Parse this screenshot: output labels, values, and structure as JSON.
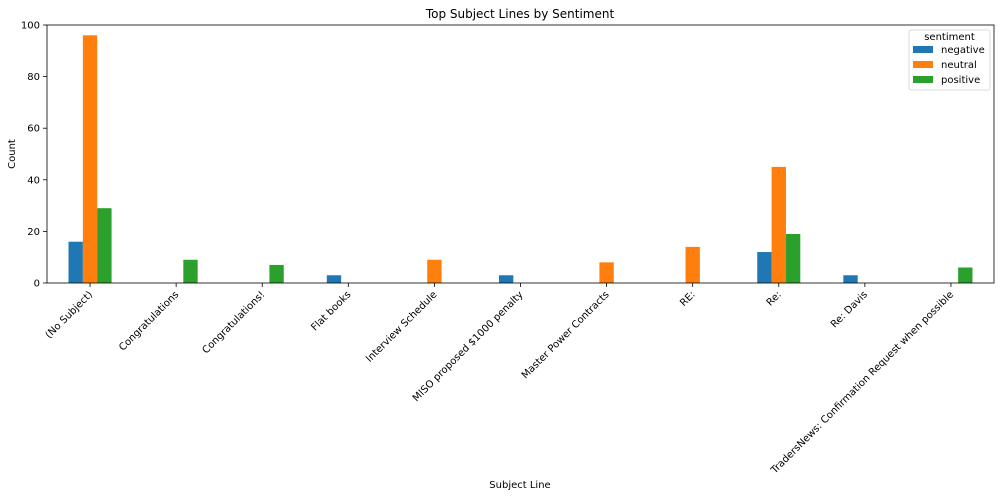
{
  "chart_data": {
    "type": "bar",
    "title": "Top Subject Lines by Sentiment",
    "xlabel": "Subject Line",
    "ylabel": "Count",
    "ylim": [
      0,
      100
    ],
    "yticks": [
      0,
      20,
      40,
      60,
      80,
      100
    ],
    "grid": false,
    "legend": {
      "title": "sentiment",
      "placement": "top-right"
    },
    "categories": [
      "(No Subject)",
      "Congratulations",
      "Congratulations!",
      "Flat books",
      "Interview Schedule",
      "MISO proposed $1000 penalty",
      "Master Power Contracts",
      "RE:",
      "Re:",
      "Re: Davis",
      "TradersNews: Confirmation Request when possible"
    ],
    "series": [
      {
        "name": "negative",
        "color": "#1f77b4",
        "values": [
          16,
          0,
          0,
          3,
          0,
          3,
          0,
          0,
          12,
          3,
          0
        ]
      },
      {
        "name": "neutral",
        "color": "#ff7f0e",
        "values": [
          96,
          0,
          0,
          0,
          9,
          0,
          8,
          14,
          45,
          0,
          0
        ]
      },
      {
        "name": "positive",
        "color": "#2ca02c",
        "values": [
          29,
          9,
          7,
          0,
          0,
          0,
          0,
          0,
          19,
          0,
          6
        ]
      }
    ]
  }
}
